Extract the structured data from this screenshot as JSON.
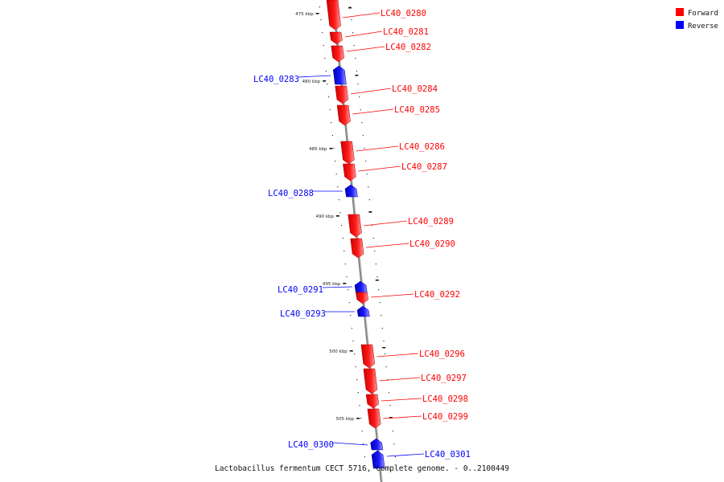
{
  "legend": {
    "items": [
      {
        "label": "Forward",
        "color": "#ff0000"
      },
      {
        "label": "Reverse",
        "color": "#0000ff"
      }
    ]
  },
  "caption": "Lactobacillus fermentum CECT 5716, complete genome. - 0..2100449",
  "colors": {
    "forward": "#ff0000",
    "reverse": "#0000ff",
    "backbone": "#888888"
  },
  "ticks": [
    "475 kbp",
    "480 kbp",
    "485 kbp",
    "490 kbp",
    "495 kbp",
    "500 kbp",
    "505 kbp"
  ],
  "genes": [
    {
      "id": "LC40_0280",
      "strand": "forward"
    },
    {
      "id": "LC40_0281",
      "strand": "forward"
    },
    {
      "id": "LC40_0282",
      "strand": "forward"
    },
    {
      "id": "LC40_0283",
      "strand": "reverse"
    },
    {
      "id": "LC40_0284",
      "strand": "forward"
    },
    {
      "id": "LC40_0285",
      "strand": "forward"
    },
    {
      "id": "LC40_0286",
      "strand": "forward"
    },
    {
      "id": "LC40_0287",
      "strand": "forward"
    },
    {
      "id": "LC40_0288",
      "strand": "reverse"
    },
    {
      "id": "LC40_0289",
      "strand": "forward"
    },
    {
      "id": "LC40_0290",
      "strand": "forward"
    },
    {
      "id": "LC40_0291",
      "strand": "reverse"
    },
    {
      "id": "LC40_0292",
      "strand": "forward"
    },
    {
      "id": "LC40_0293",
      "strand": "reverse"
    },
    {
      "id": "LC40_0296",
      "strand": "forward"
    },
    {
      "id": "LC40_0297",
      "strand": "forward"
    },
    {
      "id": "LC40_0298",
      "strand": "forward"
    },
    {
      "id": "LC40_0299",
      "strand": "forward"
    },
    {
      "id": "LC40_0300",
      "strand": "reverse"
    },
    {
      "id": "LC40_0301",
      "strand": "reverse"
    }
  ]
}
